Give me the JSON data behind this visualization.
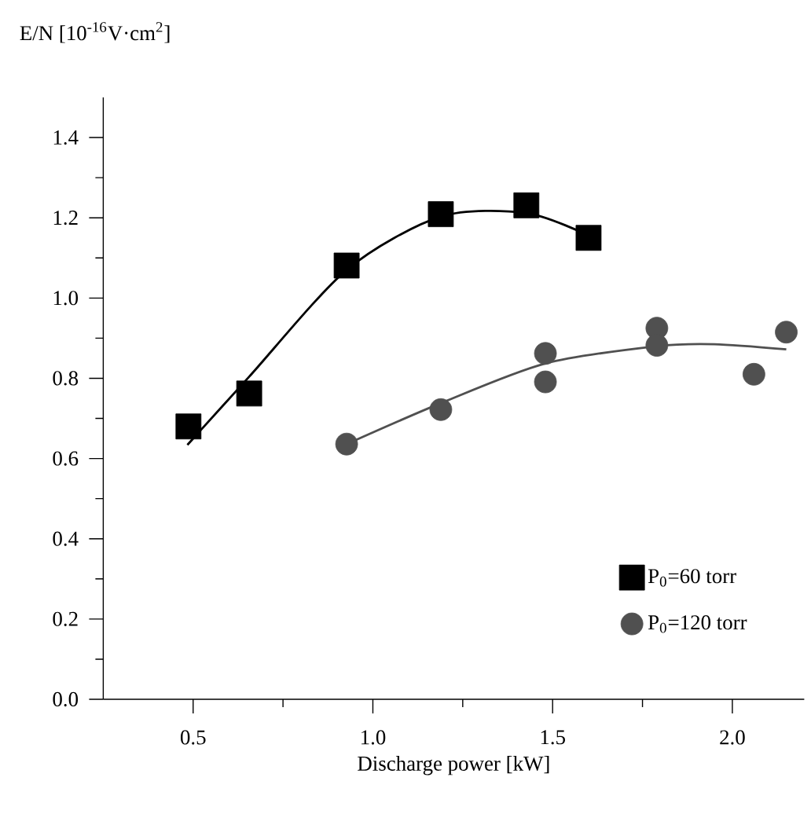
{
  "chart_data": {
    "type": "scatter",
    "xlabel": "Discharge power [kW]",
    "ylabel": "E/N [10$^{-16}$V·cm$^{2}$]",
    "xlim": [
      0.25,
      2.2
    ],
    "ylim": [
      0,
      1.5
    ],
    "xticks": [
      {
        "value": 0.5,
        "label": "0.5"
      },
      {
        "value": 0.75,
        "label": null
      },
      {
        "value": 1.0,
        "label": "1.0"
      },
      {
        "value": 1.25,
        "label": null
      },
      {
        "value": 1.5,
        "label": "1.5"
      },
      {
        "value": 1.75,
        "label": null
      },
      {
        "value": 2.0,
        "label": "2.0"
      }
    ],
    "yticks": [
      {
        "value": 0,
        "label": "0.0"
      },
      {
        "value": 0.1,
        "label": null
      },
      {
        "value": 0.2,
        "label": "0.2"
      },
      {
        "value": 0.3,
        "label": null
      },
      {
        "value": 0.4,
        "label": "0.4"
      },
      {
        "value": 0.5,
        "label": null
      },
      {
        "value": 0.6,
        "label": "0.6"
      },
      {
        "value": 0.7,
        "label": null
      },
      {
        "value": 0.8,
        "label": "0.8"
      },
      {
        "value": 0.9,
        "label": null
      },
      {
        "value": 1.0,
        "label": "1.0"
      },
      {
        "value": 1.1,
        "label": null
      },
      {
        "value": 1.2,
        "label": "1.2"
      },
      {
        "value": 1.3,
        "label": null
      },
      {
        "value": 1.4,
        "label": "1.4"
      }
    ],
    "grid": false,
    "legend": "bottom right",
    "series": [
      {
        "type": "line",
        "color": "#000000",
        "marker": "none",
        "line_style": "solid",
        "x": [
          0.484,
          0.656,
          0.927,
          1.189,
          1.427,
          1.6
        ],
        "values": [
          0.634,
          0.804,
          1.07,
          1.203,
          1.212,
          1.156
        ]
      },
      {
        "type": "line",
        "color": "#505050",
        "marker": "none",
        "line_style": "solid",
        "x": [
          0.927,
          1.189,
          1.48,
          1.79,
          1.95,
          2.15
        ],
        "values": [
          0.636,
          0.738,
          0.837,
          0.88,
          0.885,
          0.872
        ]
      },
      {
        "name": "P$_{0}$=60 torr",
        "color": "#000000",
        "marker": "square",
        "x": [
          0.487,
          0.656,
          0.927,
          1.189,
          1.427,
          1.6
        ],
        "values": [
          0.68,
          0.762,
          1.081,
          1.209,
          1.231,
          1.15
        ]
      },
      {
        "name": "P$_{0}$=120 torr",
        "color": "#505050",
        "marker": "circle",
        "x": [
          0.927,
          1.189,
          1.48,
          1.48,
          1.79,
          1.79,
          2.06,
          2.15
        ],
        "values": [
          0.636,
          0.722,
          0.862,
          0.791,
          0.925,
          0.882,
          0.81,
          0.915
        ]
      }
    ]
  }
}
